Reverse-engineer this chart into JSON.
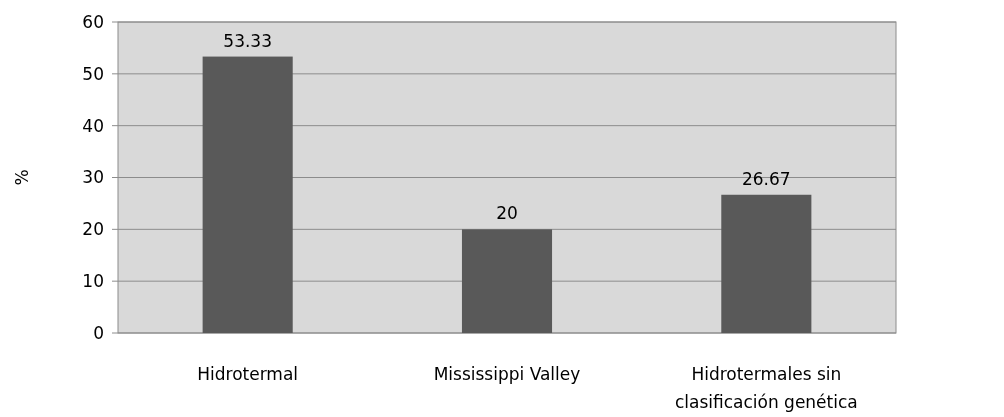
{
  "chart_data": {
    "type": "bar",
    "ylabel": "%",
    "categories": [
      "Hidrotermal",
      "Mississippi Valley",
      "Hidrotermales sin clasificación genética"
    ],
    "values": [
      53.33,
      20,
      26.67
    ],
    "color": "#595959",
    "ylim": [
      0,
      60
    ],
    "yticks": [
      0,
      10,
      20,
      30,
      40,
      50,
      60
    ],
    "grid": "y",
    "data_labels": true
  }
}
